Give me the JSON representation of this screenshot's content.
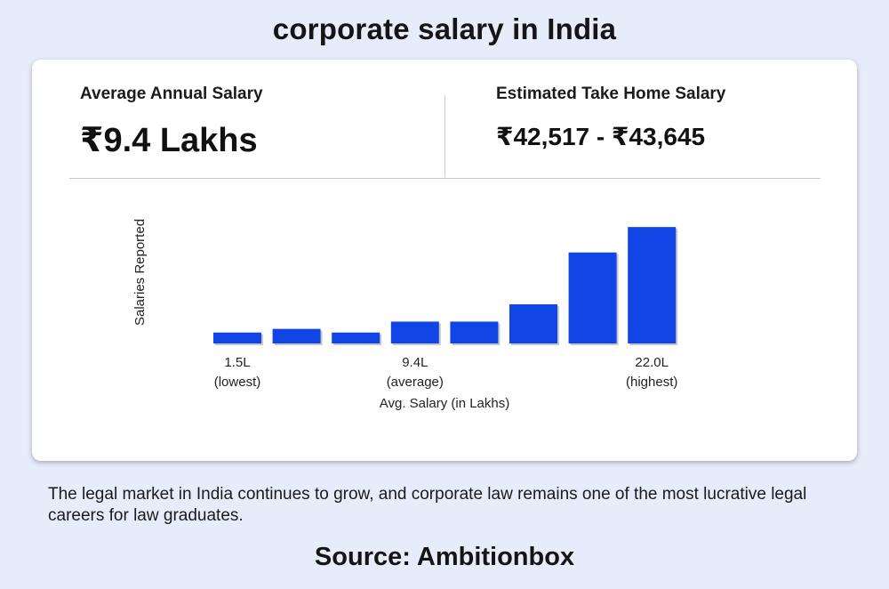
{
  "page": {
    "title": "corporate salary in India",
    "description": "The legal market in India continues to grow, and corporate law remains one of the most lucrative legal careers for law graduates.",
    "source": "Source: Ambitionbox"
  },
  "stats": {
    "average_label": "Average Annual Salary",
    "average_value": "₹9.4 Lakhs",
    "takehome_label": "Estimated Take Home Salary",
    "takehome_value": "₹42,517 - ₹43,645"
  },
  "chart_data": {
    "type": "bar",
    "ylabel": "Salaries Reported",
    "xlabel": "Avg. Salary (in Lakhs)",
    "values": [
      12,
      16,
      12,
      24,
      24,
      43,
      100,
      128
    ],
    "ylim": [
      0,
      135
    ],
    "tick_labels": [
      {
        "bar_index": 0,
        "line1": "1.5L",
        "line2": "(lowest)"
      },
      {
        "bar_index": 3,
        "line1": "9.4L",
        "line2": "(average)"
      },
      {
        "bar_index": 7,
        "line1": "22.0L",
        "line2": "(highest)"
      }
    ],
    "colors": {
      "bar": "#1245e6"
    },
    "grid": false
  }
}
